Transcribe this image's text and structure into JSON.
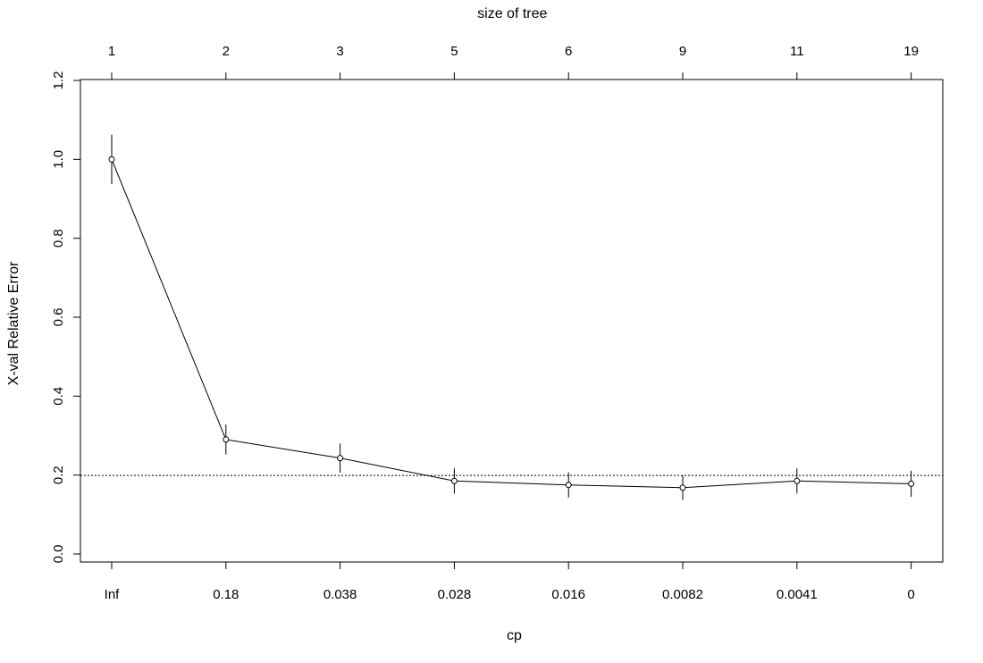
{
  "chart_data": {
    "type": "line",
    "xlabel": "cp",
    "ylabel": "X-val Relative Error",
    "top_axis_title": "size of tree",
    "categories": [
      "Inf",
      "0.18",
      "0.038",
      "0.028",
      "0.016",
      "0.0082",
      "0.0041",
      "0"
    ],
    "top_categories": [
      "1",
      "2",
      "3",
      "5",
      "6",
      "9",
      "11",
      "19"
    ],
    "series": [
      {
        "values": [
          1.0,
          0.29,
          0.243,
          0.185,
          0.175,
          0.168,
          0.185,
          0.178
        ],
        "error_low": [
          0.937,
          0.252,
          0.206,
          0.153,
          0.143,
          0.137,
          0.153,
          0.145
        ],
        "error_high": [
          1.063,
          0.328,
          0.28,
          0.217,
          0.207,
          0.199,
          0.217,
          0.211
        ]
      }
    ],
    "reference_line": 0.199,
    "ylim": [
      0.0,
      1.2
    ],
    "yticks": [
      "0.0",
      "0.2",
      "0.4",
      "0.6",
      "0.8",
      "1.0",
      "1.2"
    ],
    "grid": false,
    "legend": "none",
    "colors": {
      "line": "#000000",
      "box": "#000000",
      "background": "#ffffff"
    }
  }
}
